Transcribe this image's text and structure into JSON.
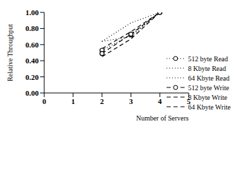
{
  "chart_data": {
    "type": "line",
    "x_label": "Number of Servers",
    "y_label": "Relative Throughput",
    "xlim": [
      0,
      5
    ],
    "xticks": [
      0,
      1,
      2,
      3,
      4,
      5
    ],
    "ylim": [
      0,
      1
    ],
    "yticks": [
      {
        "value": 0,
        "label": "0.00"
      },
      {
        "value": 0.2,
        "label": "0.20"
      },
      {
        "value": 0.4,
        "label": "0.40"
      },
      {
        "value": 0.6,
        "label": "0.60"
      },
      {
        "value": 0.8,
        "label": "0.80"
      },
      {
        "value": 1,
        "label": "1.00"
      }
    ],
    "grid": false,
    "legend": "right",
    "x": [
      2,
      3,
      4
    ],
    "series": [
      {
        "name": "512 byte Read",
        "color": "#000000",
        "line_style": "dotted",
        "marker": "circle",
        "values": [
          0.53,
          0.72,
          1.0
        ]
      },
      {
        "name": "8 Kbyte Read",
        "color": "#000000",
        "line_style": "dotted",
        "marker": "none",
        "values": [
          0.64,
          0.87,
          1.0
        ]
      },
      {
        "name": "64 Kbyte Read",
        "color": "#000000",
        "line_style": "dotted",
        "marker": "none",
        "values": [
          0.64,
          0.7,
          1.0
        ]
      },
      {
        "name": "512 byte Write",
        "color": "#000000",
        "line_style": "dashed",
        "marker": "circle",
        "values": [
          0.49,
          0.73,
          1.0
        ]
      },
      {
        "name": "8 Kbyte Write",
        "color": "#000000",
        "line_style": "dashed",
        "marker": "none",
        "values": [
          0.45,
          0.67,
          1.0
        ]
      },
      {
        "name": "64 Kbyte Write",
        "color": "#000000",
        "line_style": "dashed",
        "marker": "none",
        "values": [
          0.55,
          0.76,
          1.0
        ]
      }
    ]
  }
}
